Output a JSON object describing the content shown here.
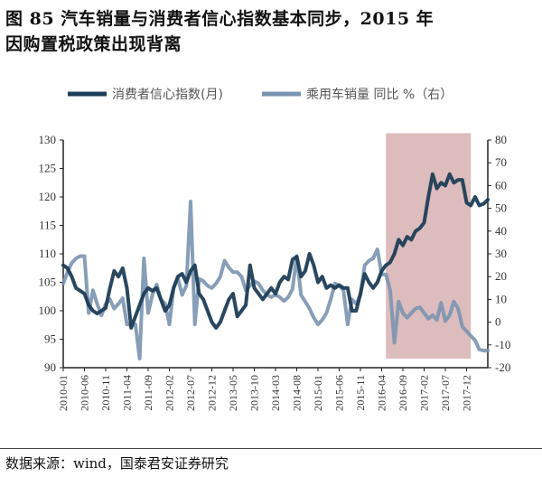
{
  "title_line1": "图 85  汽车销量与消费者信心指数基本同步，2015 年",
  "title_line2": "因购置税政策出现背离",
  "source": "数据来源：wind，国泰君安证券研究",
  "colors": {
    "cci": "#1d3d56",
    "sales": "#7a94b0",
    "shade": "#dcbcbc"
  },
  "chart_data": {
    "type": "line",
    "title": "汽车销量与消费者信心指数基本同步，2015 年因购置税政策出现背离",
    "x_start": "2010-01",
    "frequency": "monthly",
    "x_tick_labels": [
      "2010-01",
      "2010-06",
      "2010-11",
      "2011-04",
      "2011-09",
      "2012-02",
      "2012-07",
      "2012-12",
      "2013-05",
      "2013-10",
      "2014-03",
      "2014-08",
      "2015-01",
      "2015-06",
      "2015-11",
      "2016-04",
      "2016-09",
      "2017-02",
      "2017-07",
      "2017-12"
    ],
    "y_left": {
      "lim": [
        90,
        130
      ],
      "ticks": [
        90,
        95,
        100,
        105,
        110,
        115,
        120,
        125,
        130
      ]
    },
    "y_right": {
      "lim": [
        -20,
        80
      ],
      "ticks": [
        -20,
        -10,
        0,
        10,
        20,
        30,
        40,
        50,
        60,
        70,
        80
      ]
    },
    "legend_position": "top",
    "shaded_period": {
      "from": "2016-05",
      "to": "2018-01",
      "y_right_range": [
        -16,
        83
      ]
    },
    "series": [
      {
        "name": "消费者信心指数(月)",
        "axis": "left",
        "values": [
          108,
          107.5,
          106,
          104,
          103.5,
          103,
          101,
          100,
          99.5,
          100,
          100.5,
          104,
          107,
          106,
          107.5,
          104,
          97,
          99,
          101,
          103,
          104,
          103.5,
          104,
          102,
          100,
          101,
          104,
          106,
          106.5,
          105,
          107,
          108,
          103,
          102,
          100,
          98,
          97,
          98,
          100,
          102,
          103,
          99,
          100,
          101,
          108,
          104,
          103,
          102,
          103,
          104,
          103,
          105,
          106,
          105.5,
          109,
          109.5,
          106,
          107,
          110,
          108,
          105,
          106,
          104,
          104.5,
          104,
          104.5,
          104,
          104,
          100,
          100,
          103,
          106.5,
          105,
          104,
          105,
          107,
          108,
          108.5,
          110,
          112.5,
          111.5,
          113,
          112.5,
          114,
          114.5,
          115.5,
          120,
          124,
          121.5,
          122.5,
          122,
          124,
          122.5,
          123,
          123,
          119,
          118.5,
          120,
          118.5,
          118.8,
          119.5
        ]
      },
      {
        "name": "乘用车销量 同比 %（右）",
        "axis": "right",
        "values": [
          17,
          22,
          26,
          28,
          29,
          29,
          4,
          14,
          8,
          3,
          8,
          10,
          6,
          8,
          10.5,
          -1,
          -1,
          -1,
          -16,
          28,
          4,
          12,
          16.5,
          10,
          8,
          -1,
          15,
          19.5,
          12,
          16,
          53,
          -1,
          19,
          18,
          16,
          15,
          17,
          20,
          27,
          24,
          22,
          22,
          20,
          14,
          16,
          18,
          17,
          14,
          12,
          11,
          12,
          11,
          9.3,
          11,
          14.5,
          29,
          12,
          9,
          6,
          2,
          -1,
          1,
          4,
          10,
          17,
          16,
          14,
          -1,
          10,
          8,
          12,
          25,
          27,
          28,
          32,
          21,
          21,
          14,
          -9,
          9,
          4,
          2,
          4,
          6,
          6.5,
          4,
          1.5,
          3,
          1,
          8.5,
          0.5,
          3,
          9,
          6,
          -2,
          -4,
          -6,
          -8,
          -12,
          -12.5,
          -12.5
        ]
      }
    ]
  }
}
